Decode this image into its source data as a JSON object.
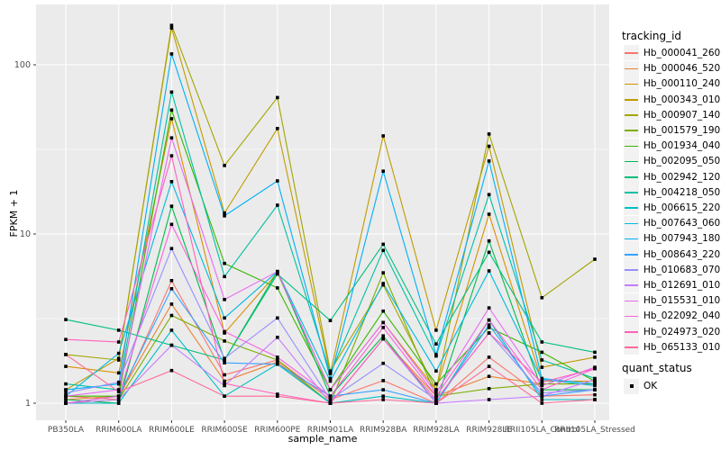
{
  "colors": {
    "panel_bg": "#EBEBEB",
    "gridline": "#FFFFFF",
    "tick_text": "#4D4D4D",
    "marker": "#000000",
    "legend_key_bg": "#F2F2F2"
  },
  "chart_data": {
    "type": "line",
    "title": "",
    "xlabel": "sample_name",
    "ylabel": "FPKM + 1",
    "y_scale": "log10",
    "y_ticks": [
      1,
      10,
      100
    ],
    "y_tick_labels": [
      "1",
      "10",
      "100"
    ],
    "y_minor_ticks": [
      3.162,
      31.62
    ],
    "ylim": [
      0.93,
      196
    ],
    "grid": "on",
    "legend_position": "right",
    "legend_title": "tracking_id",
    "point_shape": "black-square",
    "categories": [
      "PB350LA",
      "RRIM600LA",
      "RRIM600LE",
      "RRIM600SE",
      "RRIM600PE",
      "RRIM901LA",
      "RRIM928BA",
      "RRIM928LA",
      "RRIM928LE",
      "RRII105LA_Control",
      "RRII105LA_Stressed"
    ],
    "series": [
      {
        "name": "Hb_000041_260",
        "color": "#F8766D",
        "values": [
          1.1,
          1.05,
          5.3,
          1.47,
          1.8,
          1.05,
          1.36,
          1.0,
          1.87,
          1.1,
          1.12
        ]
      },
      {
        "name": "Hb_000046_520",
        "color": "#EA8331",
        "values": [
          1.05,
          1.1,
          3.85,
          1.35,
          1.75,
          1.0,
          2.4,
          1.1,
          1.44,
          1.3,
          1.3
        ]
      },
      {
        "name": "Hb_000110_240",
        "color": "#D89000",
        "values": [
          1.65,
          1.51,
          48.0,
          2.6,
          5.9,
          1.2,
          3.0,
          1.2,
          13.1,
          1.35,
          1.35
        ]
      },
      {
        "name": "Hb_000343_010",
        "color": "#C09B00",
        "values": [
          1.2,
          1.84,
          165.0,
          13.3,
          42.0,
          1.5,
          38.0,
          2.7,
          33.0,
          1.63,
          1.87
        ]
      },
      {
        "name": "Hb_000907_140",
        "color": "#A3A500",
        "values": [
          1.94,
          1.8,
          171.0,
          25.4,
          64.0,
          1.55,
          5.0,
          1.2,
          39.0,
          4.2,
          7.1
        ]
      },
      {
        "name": "Hb_001579_190",
        "color": "#7CAE00",
        "values": [
          1.0,
          1.05,
          3.3,
          2.33,
          1.8,
          1.0,
          5.9,
          1.1,
          1.22,
          1.3,
          1.3
        ]
      },
      {
        "name": "Hb_001934_040",
        "color": "#39B600",
        "values": [
          1.1,
          1.1,
          54.0,
          6.7,
          4.8,
          1.2,
          3.5,
          1.3,
          2.8,
          2.0,
          1.35
        ]
      },
      {
        "name": "Hb_002095_050",
        "color": "#00BB4E",
        "values": [
          1.05,
          1.0,
          14.6,
          1.8,
          6.0,
          1.1,
          2.5,
          1.0,
          9.1,
          1.2,
          1.2
        ]
      },
      {
        "name": "Hb_002942_120",
        "color": "#00BF7D",
        "values": [
          3.12,
          2.7,
          2.2,
          1.8,
          5.8,
          3.08,
          8.7,
          2.24,
          7.8,
          2.3,
          2.0
        ]
      },
      {
        "name": "Hb_004218_050",
        "color": "#00C1A3",
        "values": [
          1.3,
          1.2,
          69.0,
          5.6,
          14.8,
          1.5,
          8.0,
          1.9,
          17.1,
          1.8,
          1.4
        ]
      },
      {
        "name": "Hb_006615_220",
        "color": "#00BFC4",
        "values": [
          1.0,
          1.0,
          2.7,
          1.1,
          1.7,
          1.0,
          1.1,
          1.0,
          3.1,
          1.05,
          1.05
        ]
      },
      {
        "name": "Hb_007643_060",
        "color": "#00BAE0",
        "values": [
          1.1,
          1.97,
          20.4,
          3.19,
          6.0,
          1.35,
          5.1,
          1.55,
          6.05,
          1.38,
          1.27
        ]
      },
      {
        "name": "Hb_007943_180",
        "color": "#00B0F6",
        "values": [
          1.2,
          1.3,
          116.0,
          12.8,
          20.6,
          1.4,
          23.5,
          1.94,
          27.0,
          1.4,
          1.3
        ]
      },
      {
        "name": "Hb_008643_220",
        "color": "#35A2FF",
        "values": [
          1.0,
          1.1,
          4.75,
          1.73,
          1.7,
          1.1,
          1.2,
          1.0,
          2.9,
          1.1,
          1.2
        ]
      },
      {
        "name": "Hb_010683_070",
        "color": "#9590FF",
        "values": [
          1.15,
          1.33,
          8.2,
          1.84,
          3.19,
          1.05,
          1.72,
          1.05,
          2.6,
          1.15,
          1.2
        ]
      },
      {
        "name": "Hb_012691_010",
        "color": "#C77CFF",
        "values": [
          1.0,
          1.05,
          2.2,
          1.27,
          2.45,
          1.0,
          2.4,
          1.0,
          1.05,
          1.1,
          1.38
        ]
      },
      {
        "name": "Hb_015531_010",
        "color": "#E76BF3",
        "values": [
          1.1,
          1.2,
          37.0,
          4.1,
          6.0,
          1.2,
          3.0,
          1.15,
          3.66,
          1.27,
          1.63
        ]
      },
      {
        "name": "Hb_022092_040",
        "color": "#FA62DB",
        "values": [
          1.0,
          1.1,
          11.4,
          2.65,
          1.87,
          1.1,
          2.8,
          1.1,
          3.1,
          1.2,
          1.6
        ]
      },
      {
        "name": "Hb_024973_020",
        "color": "#FF62BC",
        "values": [
          2.38,
          2.3,
          29.0,
          1.31,
          1.13,
          1.0,
          2.4,
          1.05,
          2.6,
          1.33,
          1.6
        ]
      },
      {
        "name": "Hb_065133_010",
        "color": "#FF6A98",
        "values": [
          1.94,
          1.17,
          1.56,
          1.1,
          1.1,
          1.0,
          1.05,
          1.0,
          1.65,
          1.0,
          1.05
        ]
      }
    ],
    "quant_legend": {
      "title": "quant_status",
      "items": [
        {
          "label": "OK",
          "marker": "black-square"
        }
      ]
    }
  }
}
